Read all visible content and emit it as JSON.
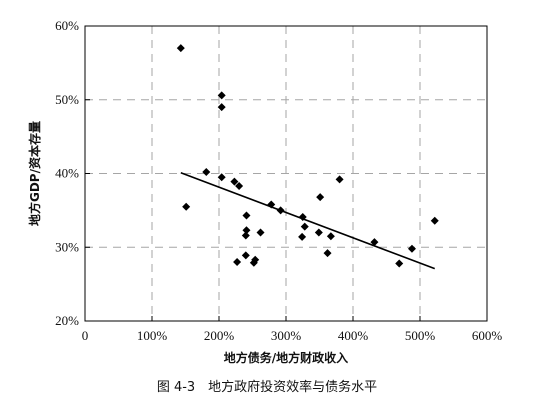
{
  "chart_data": {
    "type": "scatter",
    "caption": "图 4-3　地方政府投资效率与债务水平",
    "xlabel": "地方债务/地方财政收入",
    "ylabel": "地方GDP/资本存量",
    "xlim": [
      0,
      600
    ],
    "ylim": [
      20,
      60
    ],
    "x_ticks": [
      0,
      100,
      200,
      300,
      400,
      500,
      600
    ],
    "x_tick_labels": [
      "0",
      "100%",
      "200%",
      "300%",
      "400%",
      "500%",
      "600%"
    ],
    "y_ticks": [
      20,
      30,
      40,
      50,
      60
    ],
    "y_tick_labels": [
      "20%",
      "30%",
      "40%",
      "50%",
      "60%"
    ],
    "grid": true,
    "marker": "diamond",
    "marker_color": "#000000",
    "trendline": {
      "x": [
        143,
        522
      ],
      "y": [
        40.1,
        27.1
      ],
      "color": "#000000"
    },
    "points": [
      {
        "x": 143,
        "y": 57.0
      },
      {
        "x": 151,
        "y": 35.5
      },
      {
        "x": 181,
        "y": 40.2
      },
      {
        "x": 204,
        "y": 50.6
      },
      {
        "x": 204,
        "y": 49.0
      },
      {
        "x": 204,
        "y": 39.5
      },
      {
        "x": 223,
        "y": 38.9
      },
      {
        "x": 230,
        "y": 38.3
      },
      {
        "x": 227,
        "y": 28.0
      },
      {
        "x": 241,
        "y": 34.3
      },
      {
        "x": 241,
        "y": 32.3
      },
      {
        "x": 240,
        "y": 31.6
      },
      {
        "x": 240,
        "y": 28.9
      },
      {
        "x": 254,
        "y": 28.3
      },
      {
        "x": 252,
        "y": 27.9
      },
      {
        "x": 262,
        "y": 32.0
      },
      {
        "x": 278,
        "y": 35.8
      },
      {
        "x": 292,
        "y": 35.0
      },
      {
        "x": 325,
        "y": 34.1
      },
      {
        "x": 328,
        "y": 32.8
      },
      {
        "x": 324,
        "y": 31.4
      },
      {
        "x": 349,
        "y": 32.0
      },
      {
        "x": 351,
        "y": 36.8
      },
      {
        "x": 362,
        "y": 29.2
      },
      {
        "x": 367,
        "y": 31.5
      },
      {
        "x": 380,
        "y": 39.2
      },
      {
        "x": 432,
        "y": 30.7
      },
      {
        "x": 488,
        "y": 29.8
      },
      {
        "x": 469,
        "y": 27.8
      },
      {
        "x": 522,
        "y": 33.6
      }
    ]
  }
}
